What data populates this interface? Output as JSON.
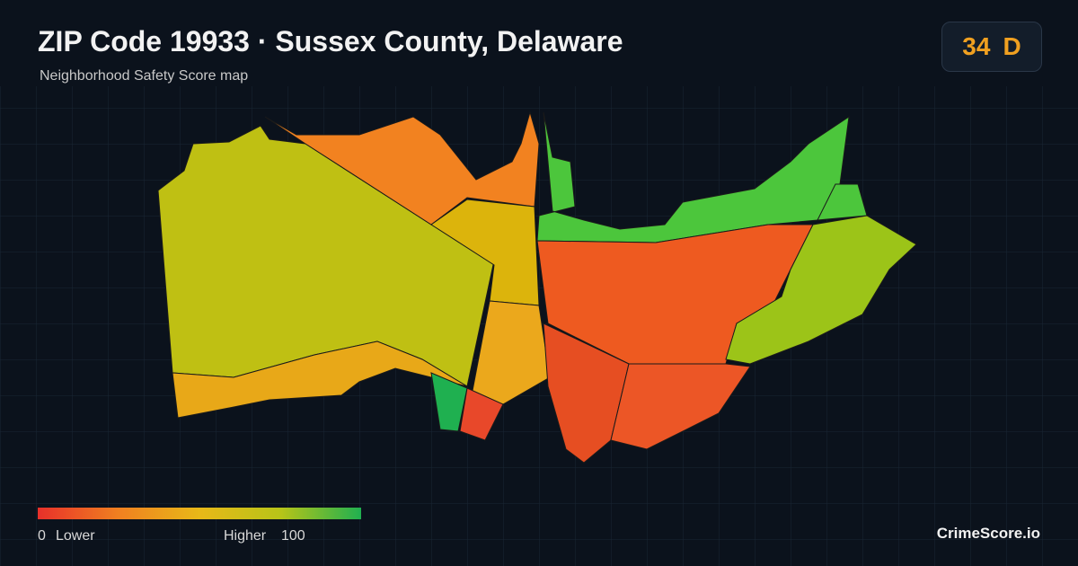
{
  "header": {
    "title": "ZIP Code 19933 · Sussex County, Delaware",
    "subtitle": "Neighborhood Safety Score map"
  },
  "badge": {
    "score": 34,
    "grade": "D"
  },
  "legend": {
    "min": 0,
    "min_label": "Lower",
    "max_label": "Higher",
    "max": 100
  },
  "brand": "CrimeScore.io"
}
